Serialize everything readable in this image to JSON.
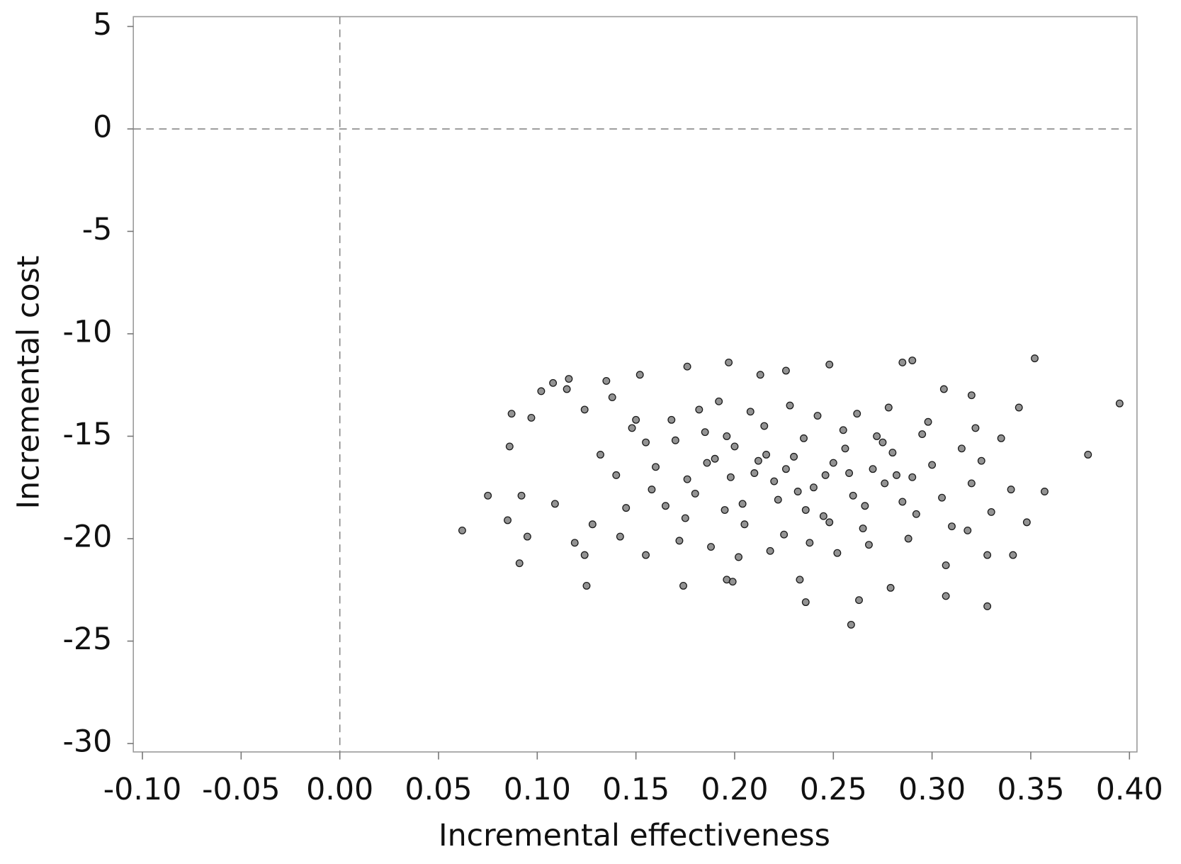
{
  "chart_data": {
    "type": "scatter",
    "x_label": "Incremental effectiveness",
    "y_label": "Incremental cost",
    "xlim": [
      -0.1046,
      0.4038
    ],
    "ylim": [
      -30.41,
      5.48
    ],
    "xticks": [
      {
        "value": -0.1,
        "label": "-0.10"
      },
      {
        "value": -0.05,
        "label": "-0.05"
      },
      {
        "value": 0,
        "label": "0.00"
      },
      {
        "value": 0.05,
        "label": "0.05"
      },
      {
        "value": 0.1,
        "label": "0.10"
      },
      {
        "value": 0.15,
        "label": "0.15"
      },
      {
        "value": 0.2,
        "label": "0.20"
      },
      {
        "value": 0.25,
        "label": "0.25"
      },
      {
        "value": 0.3,
        "label": "0.30"
      },
      {
        "value": 0.35,
        "label": "0.35"
      },
      {
        "value": 0.4,
        "label": "0.40"
      }
    ],
    "yticks": [
      5,
      0,
      -5,
      -10,
      -15,
      -20,
      -25,
      -30
    ],
    "reference_lines": {
      "x": [
        0
      ],
      "y": [
        0
      ]
    },
    "color": "#6f6f6f",
    "edge_color": "#1a1a1a",
    "x": [
      0.062,
      0.075,
      0.085,
      0.087,
      0.086,
      0.091,
      0.092,
      0.095,
      0.097,
      0.102,
      0.108,
      0.109,
      0.115,
      0.116,
      0.119,
      0.124,
      0.124,
      0.125,
      0.135,
      0.148,
      0.152,
      0.155,
      0.174,
      0.176,
      0.196,
      0.197,
      0.199,
      0.213,
      0.226,
      0.233,
      0.236,
      0.248,
      0.259,
      0.263,
      0.279,
      0.285,
      0.29,
      0.307,
      0.307,
      0.306,
      0.328,
      0.352,
      0.379,
      0.395,
      0.357,
      0.348,
      0.344,
      0.341,
      0.32,
      0.328,
      0.16,
      0.17,
      0.18,
      0.19,
      0.2,
      0.21,
      0.22,
      0.23,
      0.24,
      0.25,
      0.26,
      0.27,
      0.28,
      0.29,
      0.3,
      0.165,
      0.175,
      0.185,
      0.195,
      0.205,
      0.215,
      0.225,
      0.235,
      0.245,
      0.255,
      0.265,
      0.275,
      0.285,
      0.295,
      0.305,
      0.155,
      0.158,
      0.168,
      0.172,
      0.182,
      0.188,
      0.192,
      0.202,
      0.208,
      0.218,
      0.228,
      0.238,
      0.242,
      0.252,
      0.262,
      0.268,
      0.278,
      0.288,
      0.298,
      0.31,
      0.14,
      0.145,
      0.15,
      0.132,
      0.128,
      0.138,
      0.142,
      0.315,
      0.32,
      0.325,
      0.33,
      0.335,
      0.34,
      0.318,
      0.322,
      0.198,
      0.212,
      0.222,
      0.232,
      0.204,
      0.216,
      0.226,
      0.246,
      0.256,
      0.266,
      0.276,
      0.186,
      0.176,
      0.196,
      0.236,
      0.248,
      0.258,
      0.272,
      0.282,
      0.292
    ],
    "values": [
      -19.6,
      -17.9,
      -19.1,
      -13.9,
      -15.5,
      -21.2,
      -17.9,
      -19.9,
      -14.1,
      -12.8,
      -12.4,
      -18.3,
      -12.7,
      -12.2,
      -20.2,
      -13.7,
      -20.8,
      -22.3,
      -12.3,
      -14.6,
      -12.0,
      -20.8,
      -22.3,
      -11.6,
      -22.0,
      -11.4,
      -22.1,
      -12.0,
      -11.8,
      -22.0,
      -23.1,
      -11.5,
      -24.2,
      -23.0,
      -22.4,
      -11.4,
      -11.3,
      -22.8,
      -21.3,
      -12.7,
      -23.3,
      -11.2,
      -15.9,
      -13.4,
      -17.7,
      -19.2,
      -13.6,
      -20.8,
      -13.0,
      -20.8,
      -16.5,
      -15.2,
      -17.8,
      -16.1,
      -15.5,
      -16.8,
      -17.2,
      -16.0,
      -17.5,
      -16.3,
      -17.9,
      -16.6,
      -15.8,
      -17.0,
      -16.4,
      -18.4,
      -19.0,
      -14.8,
      -18.6,
      -19.3,
      -14.5,
      -19.8,
      -15.1,
      -18.9,
      -14.7,
      -19.5,
      -15.3,
      -18.2,
      -14.9,
      -18.0,
      -15.3,
      -17.6,
      -14.2,
      -20.1,
      -13.7,
      -20.4,
      -13.3,
      -20.9,
      -13.8,
      -20.6,
      -13.5,
      -20.2,
      -14.0,
      -20.7,
      -13.9,
      -20.3,
      -13.6,
      -20.0,
      -14.3,
      -19.4,
      -16.9,
      -18.5,
      -14.2,
      -15.9,
      -19.3,
      -13.1,
      -19.9,
      -15.6,
      -17.3,
      -16.2,
      -18.7,
      -15.1,
      -17.6,
      -19.6,
      -14.6,
      -17.0,
      -16.2,
      -18.1,
      -17.7,
      -18.3,
      -15.9,
      -16.6,
      -16.9,
      -15.6,
      -18.4,
      -17.3,
      -16.3,
      -17.1,
      -15.0,
      -18.6,
      -19.2,
      -16.8,
      -15.0,
      -16.9,
      -18.8
    ]
  }
}
